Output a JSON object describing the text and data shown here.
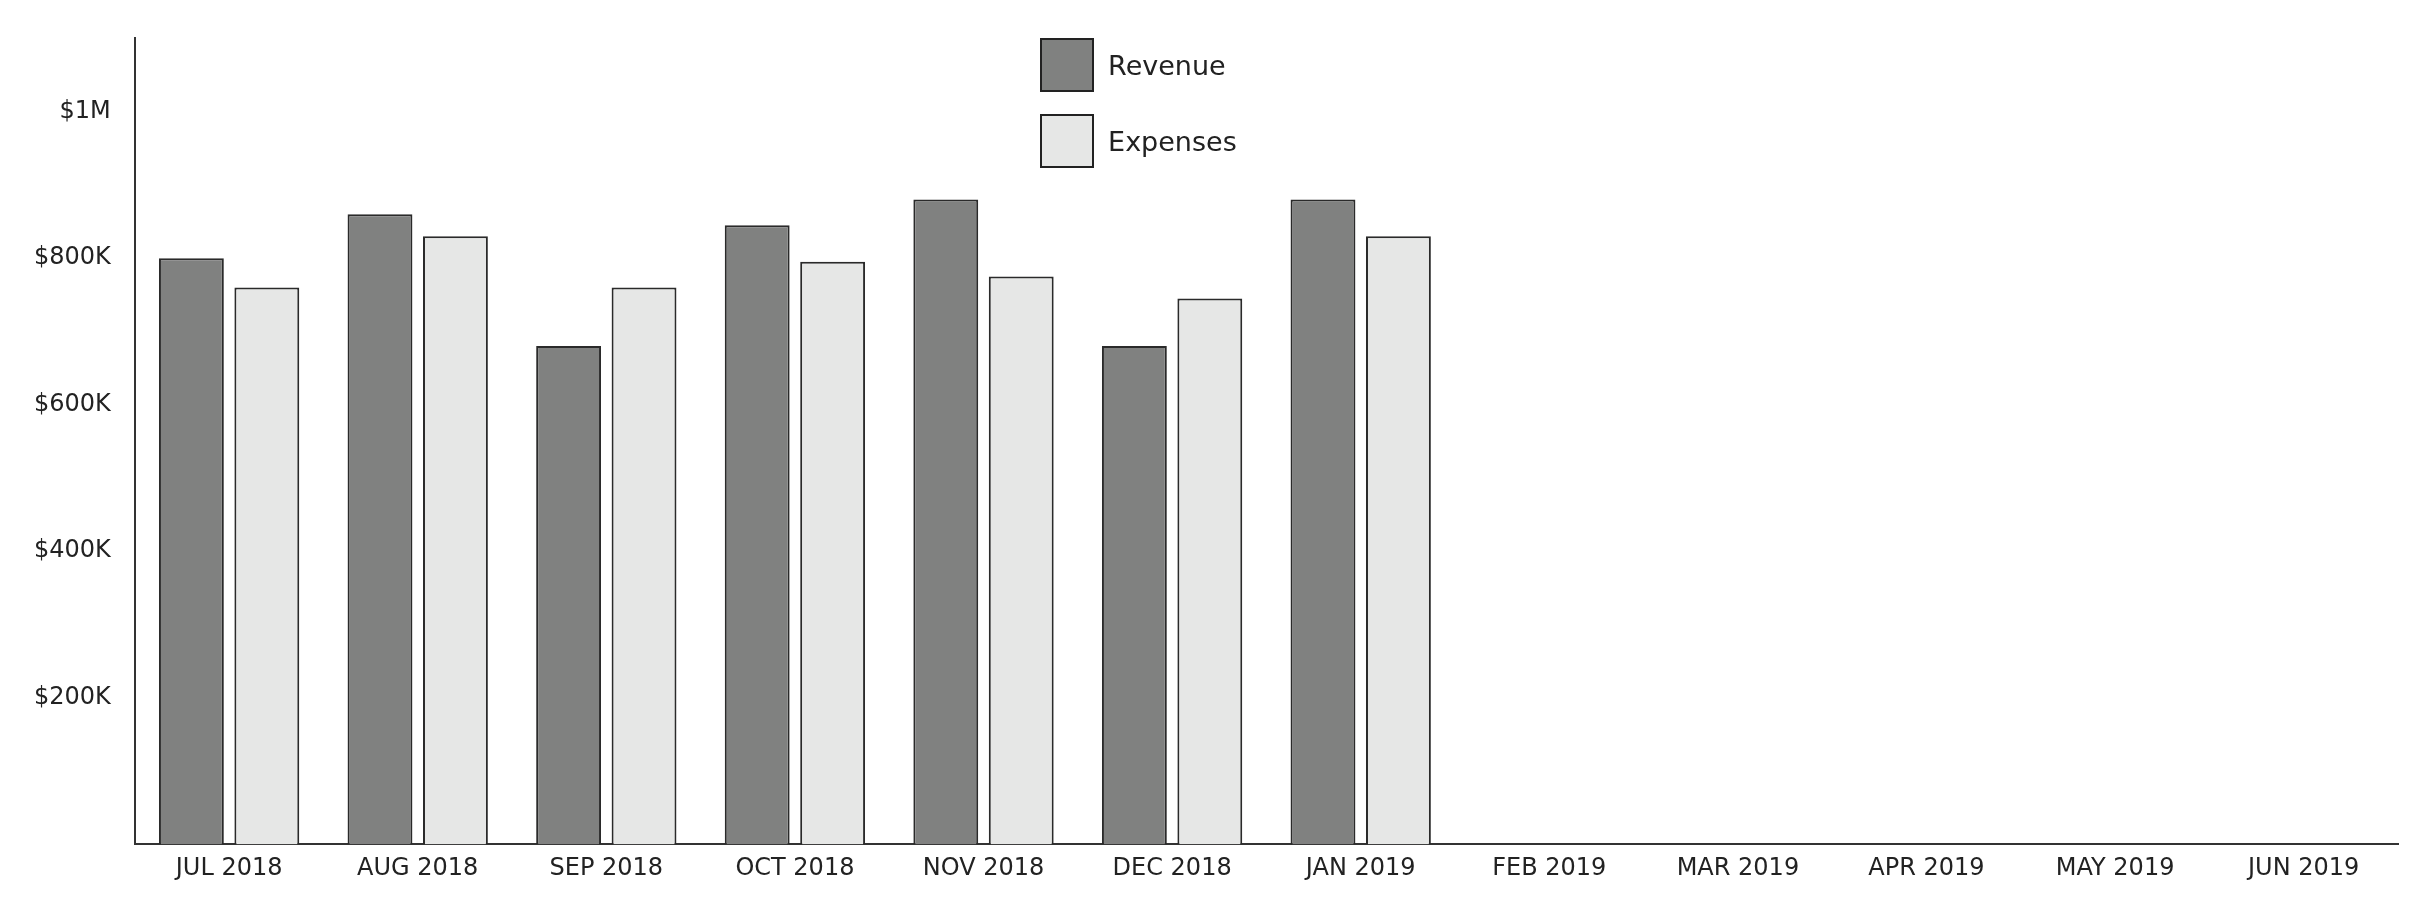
{
  "chart_data": {
    "type": "bar",
    "categories": [
      "JUL 2018",
      "AUG 2018",
      "SEP 2018",
      "OCT 2018",
      "NOV 2018",
      "DEC 2018",
      "JAN 2019",
      "FEB 2019",
      "MAR 2019",
      "APR 2019",
      "MAY 2019",
      "JUN 2019"
    ],
    "series": [
      {
        "name": "Revenue",
        "color": "#808180",
        "values": [
          800000,
          860000,
          680000,
          845000,
          880000,
          680000,
          880000,
          null,
          null,
          null,
          null,
          null
        ]
      },
      {
        "name": "Expenses",
        "color": "#e6e7e6",
        "values": [
          760000,
          830000,
          760000,
          795000,
          775000,
          745000,
          830000,
          null,
          null,
          null,
          null,
          null
        ]
      }
    ],
    "ylim": [
      0,
      1100000
    ],
    "yticks": [
      {
        "value": 200000,
        "label": "$200K"
      },
      {
        "value": 400000,
        "label": "$400K"
      },
      {
        "value": 600000,
        "label": "$600K"
      },
      {
        "value": 800000,
        "label": "$800K"
      },
      {
        "value": 1000000,
        "label": "$1M"
      }
    ],
    "grid": false,
    "legend": "top"
  }
}
